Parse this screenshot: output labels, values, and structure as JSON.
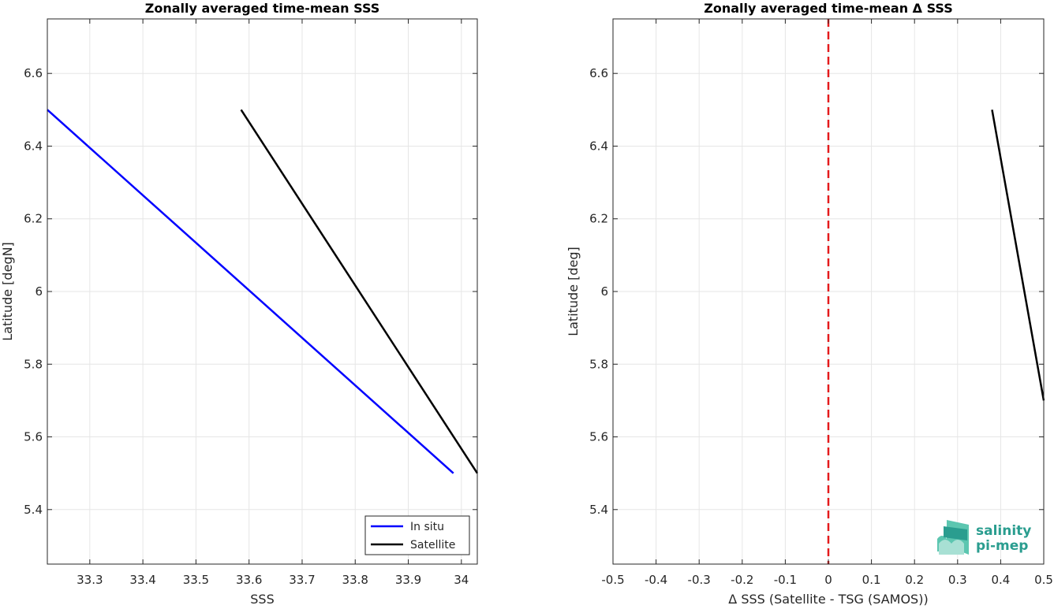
{
  "chart_data": [
    {
      "type": "line",
      "title": "Zonally averaged time-mean SSS",
      "xlabel": "SSS",
      "ylabel": "Latitude [degN]",
      "xlim": [
        33.22,
        34.03
      ],
      "ylim": [
        5.25,
        6.75
      ],
      "xticks": [
        33.3,
        33.4,
        33.5,
        33.6,
        33.7,
        33.8,
        33.9,
        34.0
      ],
      "xtick_labels": [
        "33.3",
        "33.4",
        "33.5",
        "33.6",
        "33.7",
        "33.8",
        "33.9",
        "34"
      ],
      "yticks": [
        5.4,
        5.6,
        5.8,
        6.0,
        6.2,
        6.4,
        6.6
      ],
      "ytick_labels": [
        "5.4",
        "5.6",
        "5.8",
        "6",
        "6.2",
        "6.4",
        "6.6"
      ],
      "grid": true,
      "legend_position": "bottom-right",
      "series": [
        {
          "name": "In situ",
          "color": "#0000ff",
          "x": [
            33.22,
            33.985
          ],
          "y": [
            6.5,
            5.5
          ]
        },
        {
          "name": "Satellite",
          "color": "#000000",
          "x": [
            33.585,
            34.03
          ],
          "y": [
            6.5,
            5.5
          ]
        }
      ]
    },
    {
      "type": "line",
      "title": "Zonally averaged time-mean Δ SSS",
      "xlabel": "Δ SSS (Satellite - TSG (SAMOS))",
      "ylabel": "Latitude [deg]",
      "xlim": [
        -0.5,
        0.5
      ],
      "ylim": [
        5.25,
        6.75
      ],
      "xticks": [
        -0.5,
        -0.4,
        -0.3,
        -0.2,
        -0.1,
        0.0,
        0.1,
        0.2,
        0.3,
        0.4,
        0.5
      ],
      "xtick_labels": [
        "-0.5",
        "-0.4",
        "-0.3",
        "-0.2",
        "-0.1",
        "0",
        "0.1",
        "0.2",
        "0.3",
        "0.4",
        "0.5"
      ],
      "yticks": [
        5.4,
        5.6,
        5.8,
        6.0,
        6.2,
        6.4,
        6.6
      ],
      "ytick_labels": [
        "5.4",
        "5.6",
        "5.8",
        "6",
        "6.2",
        "6.4",
        "6.6"
      ],
      "grid": true,
      "reference_line": {
        "x": 0,
        "color": "#e41a1c",
        "style": "dashed"
      },
      "series": [
        {
          "color": "#000000",
          "x": [
            0.38,
            0.5
          ],
          "y": [
            6.5,
            5.7
          ]
        }
      ]
    }
  ],
  "logo": {
    "line1": "salinity",
    "line2": "pi-mep",
    "color": "#2a9d8f"
  }
}
